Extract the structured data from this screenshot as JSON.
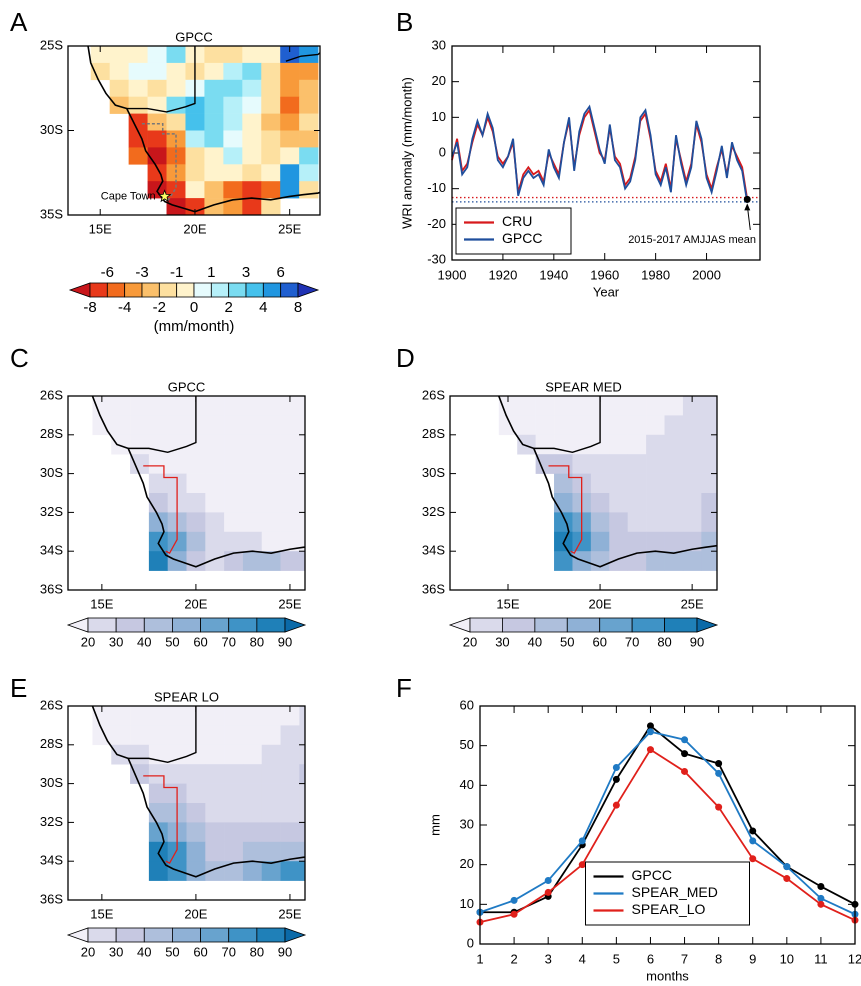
{
  "chart_data": [
    {
      "panel": "A",
      "type": "map",
      "title": "GPCC",
      "xlim": [
        13.3,
        26.6
      ],
      "ylim": [
        -35,
        -25
      ],
      "xticks": [
        {
          "value": 15,
          "label": "15E"
        },
        {
          "value": 20,
          "label": "20E"
        },
        {
          "value": 25,
          "label": "25E"
        }
      ],
      "yticks": [
        {
          "value": -25,
          "label": "25S"
        },
        {
          "value": -30,
          "label": "30S"
        },
        {
          "value": -35,
          "label": "35S"
        }
      ],
      "lon": [
        14,
        15,
        16,
        17,
        18,
        19,
        20,
        21,
        22,
        23,
        24,
        25,
        26
      ],
      "lat": [
        -25.5,
        -26.5,
        -27.5,
        -28.5,
        -29.5,
        -30.5,
        -31.5,
        -32.5,
        -33.5,
        -34.5
      ],
      "values": [
        [
          null,
          -0.5,
          -0.5,
          -0.5,
          0.5,
          2.5,
          -0.5,
          -1.5,
          -1.5,
          -0.5,
          -0.5,
          7,
          5
        ],
        [
          null,
          -1.5,
          -0.5,
          0.5,
          0.5,
          -0.5,
          -1.5,
          -0.5,
          1.5,
          2.5,
          -1.5,
          -3.5,
          -3.5
        ],
        [
          null,
          null,
          -1.5,
          -0.5,
          -1.5,
          -0.5,
          0.5,
          2.5,
          2.5,
          1.5,
          -1.5,
          -3.5,
          -2.5
        ],
        [
          null,
          null,
          -2.5,
          -1.5,
          -0.5,
          2.5,
          3.5,
          2.5,
          1.5,
          0.5,
          -1.5,
          -5,
          -2.5
        ],
        [
          null,
          null,
          null,
          -7,
          -2.5,
          -1.5,
          3.5,
          2.5,
          1.5,
          -0.5,
          -2.5,
          -3.5,
          -1.5
        ],
        [
          null,
          null,
          null,
          -7,
          -7,
          -3.5,
          1.5,
          2.5,
          0.5,
          -0.5,
          -1.5,
          -2.5,
          -2.5
        ],
        [
          null,
          null,
          null,
          -5,
          -9,
          -5,
          -1.5,
          -0.5,
          1.5,
          -0.5,
          -1.5,
          -0.5,
          2.5
        ],
        [
          null,
          null,
          null,
          null,
          -7,
          -3.5,
          -1.5,
          -0.5,
          -0.5,
          -1.5,
          -0.5,
          5,
          1.5
        ],
        [
          null,
          null,
          null,
          null,
          -9,
          -7,
          -0.5,
          -2.5,
          -5,
          -7,
          -5,
          5,
          -1.5
        ],
        [
          null,
          null,
          null,
          null,
          null,
          -9,
          -7,
          -2.5,
          -3.5,
          -7,
          -1.5,
          null,
          null
        ]
      ],
      "annotations": [
        {
          "text": "Cape Town",
          "x": 18.4,
          "y": -33.9
        }
      ],
      "colorbar": {
        "levels": [
          -8,
          -6,
          -4,
          -3,
          -2,
          -1,
          0,
          1,
          2,
          3,
          4,
          6,
          8
        ],
        "colors": [
          "#c8161b",
          "#e8391a",
          "#f26b1d",
          "#f89a3a",
          "#fbc06b",
          "#fde0a0",
          "#fff3cc",
          "#e6fbfd",
          "#b6f0f9",
          "#7adcf1",
          "#45c1ec",
          "#2096e0",
          "#1f5fd0",
          "#2032b4"
        ],
        "stagger": true,
        "label": "(mm/month)"
      }
    },
    {
      "panel": "B",
      "type": "line",
      "xlabel": "Year",
      "ylabel": "WRI anomaly (mm/month)",
      "xlim": [
        1900,
        2021
      ],
      "ylim": [
        -30,
        30
      ],
      "xticks": [
        1900,
        1920,
        1940,
        1960,
        1980,
        2000
      ],
      "yticks": [
        -30,
        -20,
        -10,
        0,
        10,
        20,
        30
      ],
      "x": [
        1900,
        1902,
        1904,
        1906,
        1908,
        1910,
        1912,
        1914,
        1916,
        1918,
        1920,
        1922,
        1924,
        1926,
        1928,
        1930,
        1932,
        1934,
        1936,
        1938,
        1940,
        1942,
        1944,
        1946,
        1948,
        1950,
        1952,
        1954,
        1956,
        1958,
        1960,
        1962,
        1964,
        1966,
        1968,
        1970,
        1972,
        1974,
        1976,
        1978,
        1980,
        1982,
        1984,
        1986,
        1988,
        1990,
        1992,
        1994,
        1996,
        1998,
        2000,
        2002,
        2004,
        2006,
        2008,
        2010,
        2012,
        2014,
        2016
      ],
      "series": [
        {
          "name": "CRU",
          "color": "#d7191c",
          "mean": -12.5,
          "values": [
            -2,
            4,
            -5,
            -3,
            3,
            8,
            5,
            10,
            6,
            -1,
            -3,
            -1,
            3,
            -11,
            -6,
            -4,
            -6,
            -5,
            -8,
            0,
            -3,
            -6,
            3,
            9,
            -4,
            5,
            10,
            12,
            6,
            0,
            -2,
            7,
            -1,
            -3,
            -9,
            -7,
            -1,
            9,
            11,
            4,
            -5,
            -8,
            -3,
            -10,
            4,
            -2,
            -8,
            -3,
            8,
            3,
            -6,
            -10,
            -4,
            1,
            -6,
            2,
            -1,
            -4,
            -13
          ]
        },
        {
          "name": "GPCC",
          "color": "#1f4e9c",
          "mean": -13.7,
          "values": [
            -1,
            3,
            -6,
            -4,
            4,
            9,
            5,
            11,
            7,
            -2,
            -4,
            -1,
            4,
            -12,
            -7,
            -5,
            -7,
            -6,
            -9,
            1,
            -4,
            -7,
            3,
            10,
            -5,
            6,
            11,
            13,
            7,
            1,
            -3,
            8,
            -2,
            -4,
            -10,
            -8,
            -2,
            10,
            12,
            5,
            -6,
            -9,
            -4,
            -11,
            5,
            -3,
            -9,
            -4,
            9,
            4,
            -7,
            -11,
            -5,
            2,
            -7,
            3,
            -2,
            -5,
            -14
          ]
        }
      ],
      "legend": "lower left",
      "annotations": [
        {
          "text": "2015-2017 AMJJAS mean",
          "x": 2016,
          "y": -13
        }
      ]
    },
    {
      "panel": "C",
      "type": "map",
      "title": "GPCC",
      "xlim": [
        13.2,
        25.8
      ],
      "ylim": [
        -36,
        -26
      ],
      "xticks": [
        {
          "value": 15,
          "label": "15E"
        },
        {
          "value": 20,
          "label": "20E"
        },
        {
          "value": 25,
          "label": "25E"
        }
      ],
      "yticks": [
        {
          "value": -26,
          "label": "26S"
        },
        {
          "value": -28,
          "label": "28S"
        },
        {
          "value": -30,
          "label": "30S"
        },
        {
          "value": -32,
          "label": "32S"
        },
        {
          "value": -34,
          "label": "34S"
        },
        {
          "value": -36,
          "label": "36S"
        }
      ],
      "lon": [
        14,
        15,
        16,
        17,
        18,
        19,
        20,
        21,
        22,
        23,
        24,
        25,
        26
      ],
      "lat": [
        -26.5,
        -27.5,
        -28.5,
        -29.5,
        -30.5,
        -31.5,
        -32.5,
        -33.5,
        -34.5
      ],
      "values": [
        [
          null,
          15,
          15,
          15,
          15,
          15,
          15,
          15,
          15,
          15,
          15,
          15,
          15
        ],
        [
          null,
          15,
          15,
          15,
          15,
          15,
          15,
          15,
          15,
          15,
          15,
          15,
          15
        ],
        [
          null,
          null,
          15,
          15,
          15,
          15,
          15,
          15,
          15,
          15,
          15,
          15,
          15
        ],
        [
          null,
          null,
          null,
          25,
          15,
          15,
          15,
          15,
          15,
          15,
          15,
          15,
          15
        ],
        [
          null,
          null,
          null,
          null,
          25,
          25,
          15,
          15,
          15,
          15,
          15,
          15,
          15
        ],
        [
          null,
          null,
          null,
          null,
          35,
          25,
          25,
          15,
          15,
          15,
          15,
          15,
          15
        ],
        [
          null,
          null,
          null,
          null,
          55,
          45,
          35,
          25,
          15,
          15,
          15,
          15,
          15
        ],
        [
          null,
          null,
          null,
          null,
          75,
          65,
          45,
          25,
          25,
          25,
          15,
          15,
          15
        ],
        [
          null,
          null,
          null,
          null,
          85,
          55,
          35,
          25,
          35,
          45,
          45,
          35,
          35
        ]
      ],
      "colorbar": {
        "levels": [
          20,
          30,
          40,
          50,
          60,
          70,
          80,
          90
        ],
        "colors": [
          "#f1eff7",
          "#dadaeb",
          "#c6c8e1",
          "#aebfdc",
          "#8fb1d6",
          "#68a3ce",
          "#3f93c6",
          "#1f80b8",
          "#0b6aa8"
        ],
        "stagger": false
      }
    },
    {
      "panel": "D",
      "type": "map",
      "title": "SPEAR MED",
      "xlim": [
        11.85,
        26.35
      ],
      "ylim": [
        -36,
        -26
      ],
      "xticks": [
        {
          "value": 15,
          "label": "15E"
        },
        {
          "value": 20,
          "label": "20E"
        },
        {
          "value": 25,
          "label": "25E"
        }
      ],
      "yticks": [
        {
          "value": -26,
          "label": "26S"
        },
        {
          "value": -28,
          "label": "28S"
        },
        {
          "value": -30,
          "label": "30S"
        },
        {
          "value": -32,
          "label": "32S"
        },
        {
          "value": -34,
          "label": "34S"
        },
        {
          "value": -36,
          "label": "36S"
        }
      ],
      "lon": [
        14,
        15,
        16,
        17,
        18,
        19,
        20,
        21,
        22,
        23,
        24,
        25,
        26
      ],
      "lat": [
        -26.5,
        -27.5,
        -28.5,
        -29.5,
        -30.5,
        -31.5,
        -32.5,
        -33.5,
        -34.5
      ],
      "values": [
        [
          null,
          15,
          15,
          15,
          15,
          15,
          15,
          15,
          15,
          15,
          15,
          25,
          25
        ],
        [
          null,
          15,
          15,
          15,
          15,
          15,
          15,
          15,
          15,
          15,
          25,
          25,
          25
        ],
        [
          null,
          null,
          25,
          15,
          15,
          15,
          15,
          15,
          15,
          25,
          25,
          25,
          25
        ],
        [
          null,
          null,
          null,
          35,
          35,
          25,
          25,
          25,
          25,
          25,
          25,
          25,
          25
        ],
        [
          null,
          null,
          null,
          null,
          45,
          35,
          25,
          25,
          25,
          25,
          25,
          25,
          25
        ],
        [
          null,
          null,
          null,
          null,
          55,
          45,
          35,
          25,
          25,
          25,
          25,
          25,
          35
        ],
        [
          null,
          null,
          null,
          null,
          75,
          65,
          45,
          35,
          25,
          25,
          25,
          25,
          35
        ],
        [
          null,
          null,
          null,
          null,
          85,
          75,
          55,
          35,
          35,
          35,
          35,
          35,
          45
        ],
        [
          null,
          null,
          null,
          null,
          75,
          55,
          45,
          35,
          35,
          45,
          45,
          45,
          45
        ]
      ],
      "colorbar": {
        "levels": [
          20,
          30,
          40,
          50,
          60,
          70,
          80,
          90
        ],
        "colors": [
          "#f1eff7",
          "#dadaeb",
          "#c6c8e1",
          "#aebfdc",
          "#8fb1d6",
          "#68a3ce",
          "#3f93c6",
          "#1f80b8",
          "#0b6aa8"
        ],
        "stagger": false
      }
    },
    {
      "panel": "E",
      "type": "map",
      "title": "SPEAR LO",
      "xlim": [
        13.2,
        25.8
      ],
      "ylim": [
        -36,
        -26
      ],
      "xticks": [
        {
          "value": 15,
          "label": "15E"
        },
        {
          "value": 20,
          "label": "20E"
        },
        {
          "value": 25,
          "label": "25E"
        }
      ],
      "yticks": [
        {
          "value": -26,
          "label": "26S"
        },
        {
          "value": -28,
          "label": "28S"
        },
        {
          "value": -30,
          "label": "30S"
        },
        {
          "value": -32,
          "label": "32S"
        },
        {
          "value": -34,
          "label": "34S"
        },
        {
          "value": -36,
          "label": "36S"
        }
      ],
      "lon": [
        14,
        15,
        16,
        17,
        18,
        19,
        20,
        21,
        22,
        23,
        24,
        25,
        26
      ],
      "lat": [
        -26.5,
        -27.5,
        -28.5,
        -29.5,
        -30.5,
        -31.5,
        -32.5,
        -33.5,
        -34.5
      ],
      "values": [
        [
          null,
          15,
          15,
          15,
          15,
          15,
          15,
          15,
          15,
          15,
          15,
          15,
          25
        ],
        [
          null,
          15,
          15,
          15,
          15,
          15,
          15,
          15,
          15,
          15,
          15,
          25,
          25
        ],
        [
          null,
          null,
          25,
          25,
          15,
          15,
          15,
          15,
          15,
          15,
          25,
          25,
          25
        ],
        [
          null,
          null,
          null,
          35,
          25,
          25,
          25,
          25,
          25,
          25,
          25,
          25,
          35
        ],
        [
          null,
          null,
          null,
          null,
          35,
          35,
          25,
          25,
          25,
          25,
          25,
          25,
          25
        ],
        [
          null,
          null,
          null,
          null,
          45,
          45,
          35,
          25,
          25,
          25,
          25,
          25,
          25
        ],
        [
          null,
          null,
          null,
          null,
          65,
          55,
          45,
          35,
          35,
          35,
          35,
          35,
          35
        ],
        [
          null,
          null,
          null,
          null,
          85,
          75,
          55,
          35,
          35,
          45,
          45,
          45,
          45
        ],
        [
          null,
          null,
          null,
          null,
          85,
          75,
          55,
          45,
          45,
          55,
          65,
          75,
          75
        ]
      ],
      "colorbar": {
        "levels": [
          20,
          30,
          40,
          50,
          60,
          70,
          80,
          90
        ],
        "colors": [
          "#f1eff7",
          "#dadaeb",
          "#c6c8e1",
          "#aebfdc",
          "#8fb1d6",
          "#68a3ce",
          "#3f93c6",
          "#1f80b8",
          "#0b6aa8"
        ],
        "stagger": false
      }
    },
    {
      "panel": "F",
      "type": "line",
      "xlabel": "months",
      "ylabel": "mm",
      "xlim": [
        1,
        12
      ],
      "ylim": [
        0,
        60
      ],
      "xticks": [
        1,
        2,
        3,
        4,
        5,
        6,
        7,
        8,
        9,
        10,
        11,
        12
      ],
      "yticks": [
        0,
        10,
        20,
        30,
        40,
        50,
        60
      ],
      "x": [
        1,
        2,
        3,
        4,
        5,
        6,
        7,
        8,
        9,
        10,
        11,
        12
      ],
      "markers": true,
      "series": [
        {
          "name": "GPCC",
          "color": "#000000",
          "values": [
            8,
            8,
            12,
            25,
            41.5,
            55,
            48,
            45.5,
            28.5,
            19.5,
            14.5,
            10
          ]
        },
        {
          "name": "SPEAR_MED",
          "color": "#1f7ac4",
          "values": [
            8,
            11,
            16,
            26,
            44.5,
            53.5,
            51.5,
            43,
            26,
            19.5,
            11.5,
            7.5
          ]
        },
        {
          "name": "SPEAR_LO",
          "color": "#e0201b",
          "values": [
            5.5,
            7.5,
            13,
            20,
            35,
            49,
            43.5,
            34.5,
            21.5,
            16.5,
            10,
            6
          ]
        }
      ],
      "legend": "lower center"
    }
  ]
}
